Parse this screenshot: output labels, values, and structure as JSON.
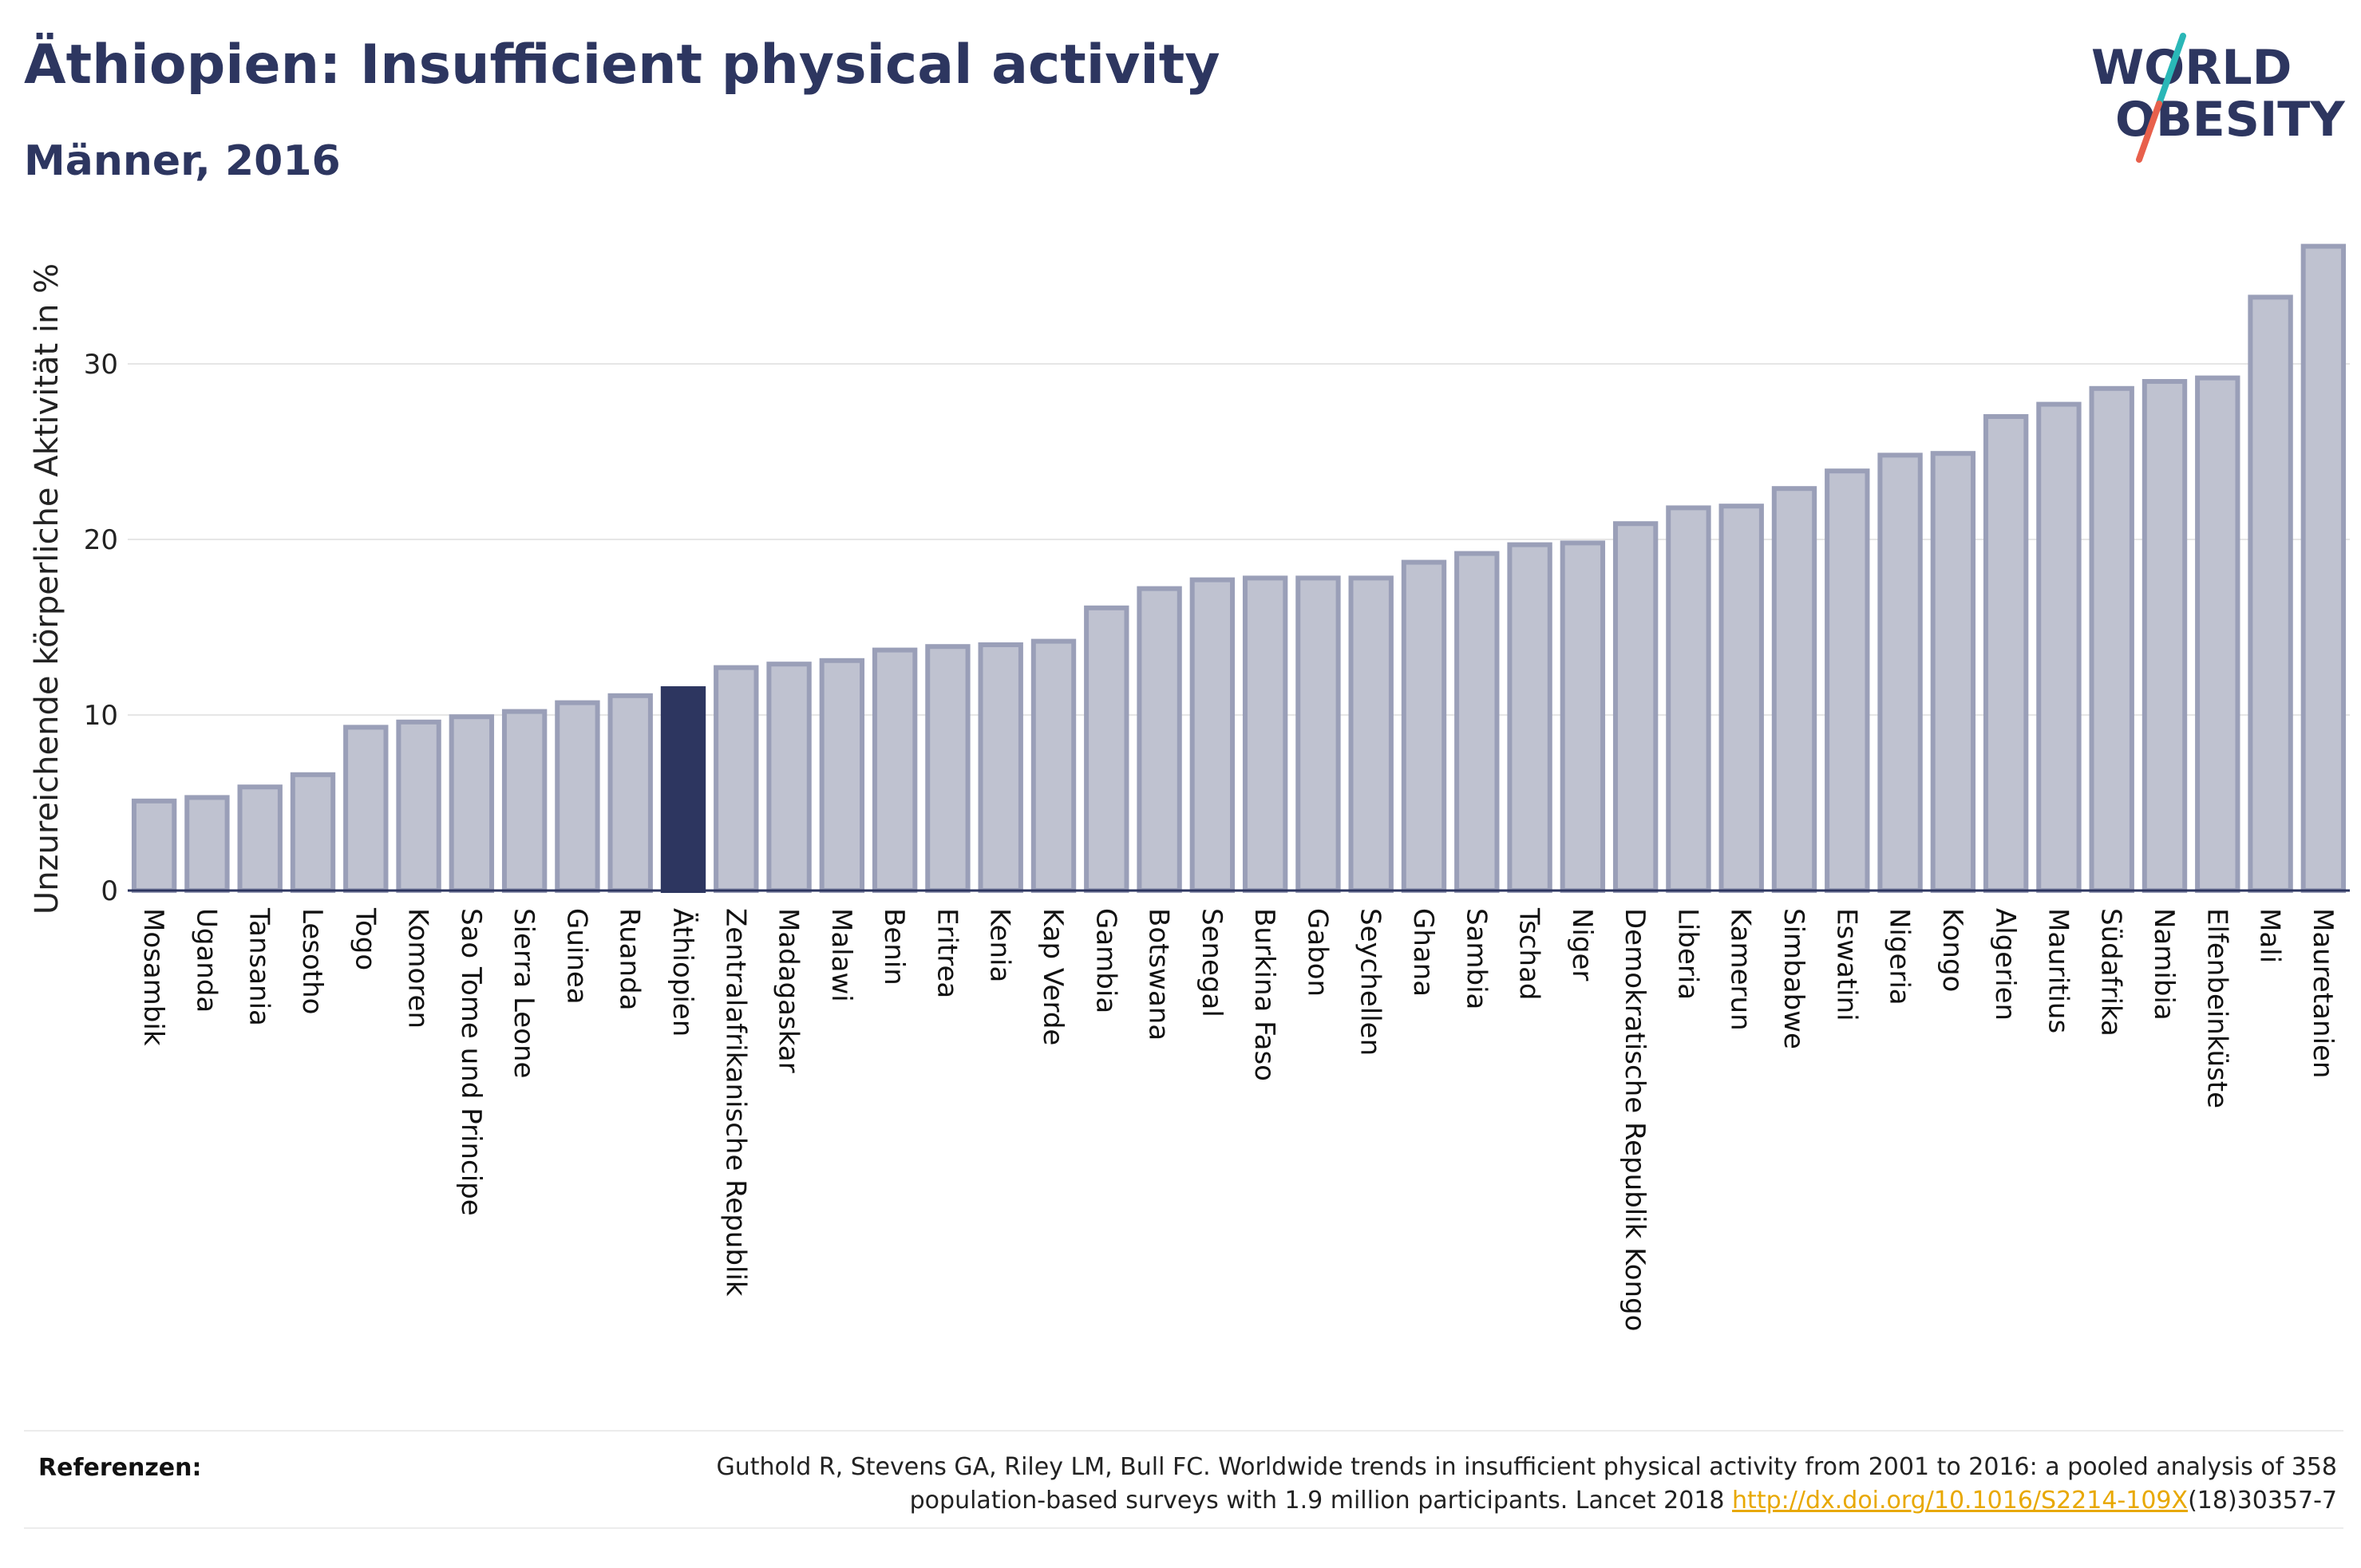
{
  "header": {
    "title": "Äthiopien: Insufficient physical activity",
    "subtitle": "Männer, 2016"
  },
  "logo": {
    "line1": "WORLD",
    "line2": "OBESITY",
    "text_color": "#2d3660",
    "slash_colors": [
      "#2ab7b7",
      "#e8604c"
    ]
  },
  "colors": {
    "bar_fill": "#bfc2d0",
    "bar_stroke": "#9a9fb8",
    "highlight_fill": "#2d3660",
    "gridline": "#e6e6e6",
    "axis": "#2d3660"
  },
  "chart_data": {
    "type": "bar",
    "ylabel": "Unzureichende körperliche Aktivität in %",
    "ylim": [
      0,
      38
    ],
    "yticks": [
      0,
      10,
      20,
      30
    ],
    "highlight": "Äthiopien",
    "grid": true,
    "categories": [
      "Mosambik",
      "Uganda",
      "Tansania",
      "Lesotho",
      "Togo",
      "Komoren",
      "Sao Tome und Principe",
      "Sierra Leone",
      "Guinea",
      "Ruanda",
      "Äthiopien",
      "Zentralafrikanische Republik",
      "Madagaskar",
      "Malawi",
      "Benin",
      "Eritrea",
      "Kenia",
      "Kap Verde",
      "Gambia",
      "Botswana",
      "Senegal",
      "Burkina Faso",
      "Gabon",
      "Seychellen",
      "Ghana",
      "Sambia",
      "Tschad",
      "Niger",
      "Demokratische Republik Kongo",
      "Liberia",
      "Kamerun",
      "Simbabwe",
      "Eswatini",
      "Nigeria",
      "Kongo",
      "Algerien",
      "Mauritius",
      "Südafrika",
      "Namibia",
      "Elfenbeinküste",
      "Mali",
      "Mauretanien"
    ],
    "values": [
      5.1,
      5.3,
      5.9,
      6.6,
      9.3,
      9.6,
      9.9,
      10.2,
      10.7,
      11.1,
      11.5,
      12.7,
      12.9,
      13.1,
      13.7,
      13.9,
      14.0,
      14.2,
      16.1,
      17.2,
      17.7,
      17.8,
      17.8,
      17.8,
      18.7,
      19.2,
      19.7,
      19.8,
      20.9,
      21.8,
      21.9,
      22.9,
      23.9,
      24.8,
      24.9,
      27.0,
      27.7,
      28.6,
      29.0,
      29.2,
      33.8,
      36.7
    ]
  },
  "references": {
    "label": "Referenzen:",
    "text_before": "Guthold R, Stevens GA, Riley LM, Bull FC. Worldwide trends in insufficient physical activity from 2001 to 2016: a pooled analysis of 358 population-based surveys with 1.9 million participants. Lancet 2018 ",
    "link_text": "http://dx.doi.org/10.1016/S2214-109X",
    "text_after": "(18)30357-7"
  }
}
